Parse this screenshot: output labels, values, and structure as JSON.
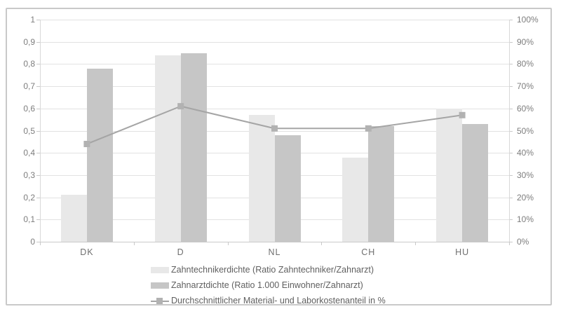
{
  "chart_data": {
    "type": "combo-bar-line",
    "categories": [
      "DK",
      "D",
      "NL",
      "CH",
      "HU"
    ],
    "series": [
      {
        "name": "Zahntechnikerdichte (Ratio Zahntechniker/Zahnarzt)",
        "short": "zahntechnikerdichte",
        "type": "bar",
        "axis": "left",
        "color": "#e8e8e8",
        "values": [
          0.21,
          0.84,
          0.57,
          0.38,
          0.6
        ]
      },
      {
        "name": "Zahnarztdichte (Ratio 1.000 Einwohner/Zahnarzt)",
        "short": "zahnarztdichte",
        "type": "bar",
        "axis": "left",
        "color": "#c6c6c6",
        "values": [
          0.78,
          0.85,
          0.48,
          0.52,
          0.53
        ]
      },
      {
        "name": "Durchschnittlicher Material- und Laborkostenanteil in %",
        "short": "material-laborkostenanteil",
        "type": "line",
        "axis": "right",
        "color": "#a5a5a5",
        "marker_color": "#b2b2b2",
        "values": [
          44,
          61,
          51,
          51,
          57
        ]
      }
    ],
    "left_axis": {
      "min": 0,
      "max": 1,
      "step": 0.1,
      "tick_labels": [
        "0",
        "0,1",
        "0,2",
        "0,3",
        "0,4",
        "0,5",
        "0,6",
        "0,7",
        "0,8",
        "0,9",
        "1"
      ]
    },
    "right_axis": {
      "min": 0,
      "max": 100,
      "step": 10,
      "tick_labels": [
        "0%",
        "10%",
        "20%",
        "30%",
        "40%",
        "50%",
        "60%",
        "70%",
        "80%",
        "90%",
        "100%"
      ]
    },
    "grid": true,
    "legend_position": "bottom"
  },
  "colors": {
    "gridline": "#e2e2e2",
    "axis_line": "#c9c9c9",
    "axis_text": "#7d7d7d",
    "legend_text": "#606060",
    "frame_border": "#c9c9c9"
  }
}
